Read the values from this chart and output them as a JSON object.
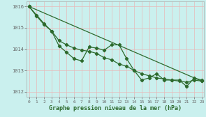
{
  "title": "Graphe pression niveau de la mer (hPa)",
  "bg_color": "#caf0ee",
  "grid_color": "#b0d8d8",
  "line_color": "#2d6a2d",
  "marker_color": "#2d6a2d",
  "ylabel_color": "#2d6a2d",
  "xlabel_color": "#2d6a2d",
  "ylim": [
    1011.75,
    1016.25
  ],
  "xlim": [
    -0.3,
    23.3
  ],
  "yticks": [
    1012,
    1013,
    1014,
    1015,
    1016
  ],
  "xticks": [
    0,
    1,
    2,
    3,
    4,
    5,
    6,
    7,
    8,
    9,
    10,
    11,
    12,
    13,
    14,
    15,
    16,
    17,
    18,
    19,
    20,
    21,
    22,
    23
  ],
  "series_trend_x": [
    0,
    23
  ],
  "series_trend_y": [
    1016.0,
    1012.5
  ],
  "series_wavy_x": [
    0,
    1,
    2,
    3,
    4,
    5,
    6,
    7,
    8,
    9,
    10,
    11,
    12,
    13,
    14,
    15,
    16,
    17,
    18,
    19,
    20,
    21,
    22,
    23
  ],
  "series_wavy_y": [
    1016.0,
    1015.6,
    1015.2,
    1014.85,
    1014.15,
    1013.85,
    1013.55,
    1013.45,
    1014.1,
    1014.05,
    1013.95,
    1014.2,
    1014.2,
    1013.55,
    1013.0,
    1012.55,
    1012.65,
    1012.85,
    1012.55,
    1012.55,
    1012.55,
    1012.25,
    1012.65,
    1012.55
  ],
  "series_smooth_x": [
    0,
    1,
    2,
    3,
    4,
    5,
    6,
    7,
    8,
    9,
    10,
    11,
    12,
    13,
    14,
    15,
    16,
    17,
    18,
    19,
    20,
    21,
    22,
    23
  ],
  "series_smooth_y": [
    1016.0,
    1015.55,
    1015.15,
    1014.85,
    1014.4,
    1014.2,
    1014.05,
    1013.95,
    1013.9,
    1013.8,
    1013.6,
    1013.5,
    1013.3,
    1013.2,
    1013.0,
    1012.85,
    1012.75,
    1012.65,
    1012.6,
    1012.55,
    1012.5,
    1012.45,
    1012.55,
    1012.5
  ]
}
